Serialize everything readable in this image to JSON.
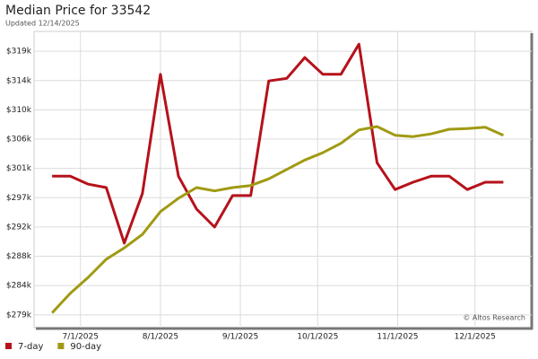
{
  "chart_data": {
    "type": "line",
    "title": "Median Price for 33542",
    "subtitle": "Updated 12/14/2025",
    "annotation": "© Altos Research",
    "x": [
      "2025-06-20",
      "2025-06-27",
      "2025-07-04",
      "2025-07-11",
      "2025-07-18",
      "2025-07-25",
      "2025-08-01",
      "2025-08-08",
      "2025-08-15",
      "2025-08-22",
      "2025-08-29",
      "2025-09-05",
      "2025-09-12",
      "2025-09-19",
      "2025-09-26",
      "2025-10-03",
      "2025-10-10",
      "2025-10-17",
      "2025-10-24",
      "2025-10-31",
      "2025-11-07",
      "2025-11-14",
      "2025-11-21",
      "2025-11-28",
      "2025-12-05",
      "2025-12-12"
    ],
    "series": [
      {
        "name": "7-day",
        "color": "#b5121b",
        "values": [
          300000,
          300000,
          298800,
          298300,
          290000,
          297400,
          315200,
          300000,
          295100,
          292400,
          297100,
          297100,
          314200,
          314600,
          317700,
          315200,
          315200,
          319700,
          302000,
          298000,
          299100,
          300000,
          300000,
          298000,
          299100,
          299100
        ]
      },
      {
        "name": "90-day",
        "color": "#a09a12",
        "values": [
          279600,
          282500,
          284900,
          287600,
          289300,
          291300,
          294700,
          296700,
          298300,
          297800,
          298300,
          298600,
          299600,
          301000,
          302400,
          303500,
          304900,
          306900,
          307400,
          306100,
          305900,
          306300,
          307000,
          307100,
          307300,
          306100
        ]
      }
    ],
    "xlim": [
      "2025-06-13",
      "2025-12-23"
    ],
    "xticks": [
      {
        "value": "2025-07-01",
        "label": "7/1/2025"
      },
      {
        "value": "2025-08-01",
        "label": "8/1/2025"
      },
      {
        "value": "2025-09-01",
        "label": "9/1/2025"
      },
      {
        "value": "2025-10-01",
        "label": "10/1/2025"
      },
      {
        "value": "2025-11-01",
        "label": "11/1/2025"
      },
      {
        "value": "2025-12-01",
        "label": "12/1/2025"
      }
    ],
    "ylim": [
      277400,
      321600
    ],
    "yticks": [
      {
        "value": 279300,
        "label": "$279k"
      },
      {
        "value": 283670,
        "label": "$284k"
      },
      {
        "value": 288040,
        "label": "$288k"
      },
      {
        "value": 292410,
        "label": "$292k"
      },
      {
        "value": 296780,
        "label": "$297k"
      },
      {
        "value": 301150,
        "label": "$301k"
      },
      {
        "value": 305520,
        "label": "$306k"
      },
      {
        "value": 309890,
        "label": "$310k"
      },
      {
        "value": 314260,
        "label": "$314k"
      },
      {
        "value": 318630,
        "label": "$319k"
      }
    ],
    "grid": true
  }
}
